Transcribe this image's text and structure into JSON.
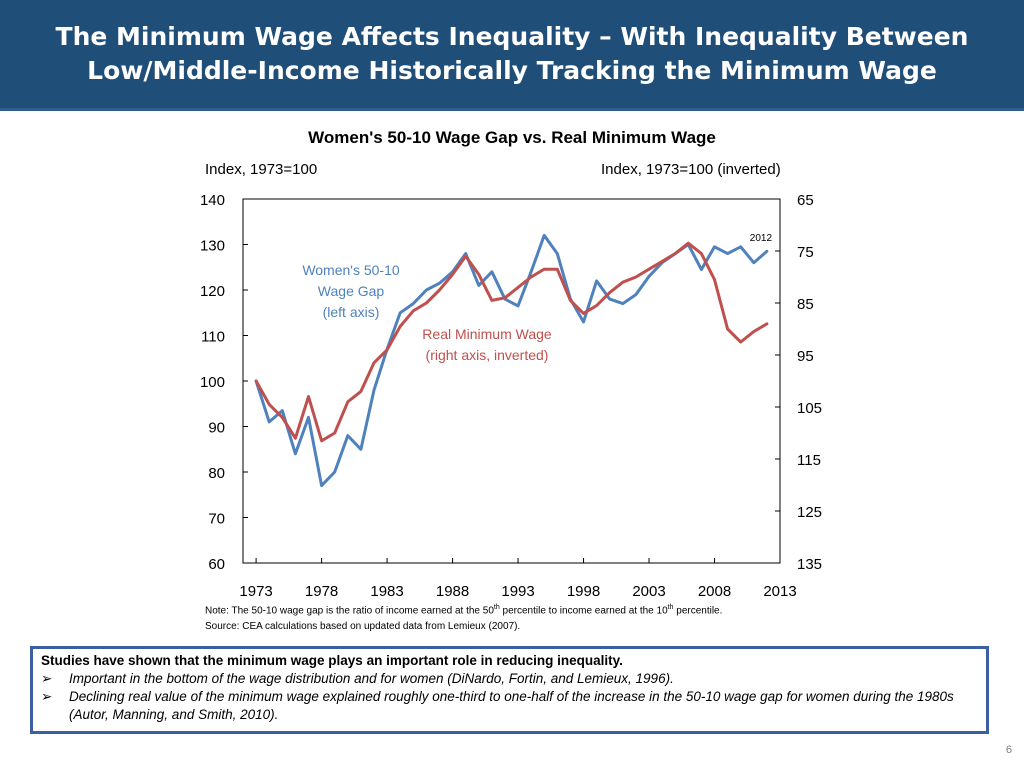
{
  "header": {
    "title_line1": "The Minimum Wage Affects Inequality – With Inequality Between",
    "title_line2": "Low/Middle-Income Historically Tracking the Minimum Wage"
  },
  "chart_data": {
    "type": "line",
    "title": "Women's 50-10 Wage Gap vs. Real Minimum Wage",
    "left_axis_unit": "Index, 1973=100",
    "right_axis_unit": "Index, 1973=100 (inverted)",
    "x_ticks": [
      "1973",
      "1978",
      "1983",
      "1988",
      "1993",
      "1998",
      "2003",
      "2008",
      "2013"
    ],
    "x_range": [
      1972,
      2013
    ],
    "left_ticks": [
      "140",
      "130",
      "120",
      "110",
      "100",
      "90",
      "80",
      "70",
      "60"
    ],
    "left_range": [
      60,
      140
    ],
    "right_ticks": [
      "65",
      "75",
      "85",
      "95",
      "105",
      "115",
      "125",
      "135"
    ],
    "right_range_inverted": [
      65,
      135
    ],
    "grid": false,
    "end_label": "2012",
    "series": [
      {
        "name": "Women's 50-10 Wage Gap (left axis)",
        "axis": "left",
        "color": "#4f81bd",
        "x": [
          1973,
          1974,
          1975,
          1976,
          1977,
          1978,
          1979,
          1980,
          1981,
          1982,
          1983,
          1984,
          1985,
          1986,
          1987,
          1988,
          1989,
          1990,
          1991,
          1992,
          1993,
          1994,
          1995,
          1996,
          1997,
          1998,
          1999,
          2000,
          2001,
          2002,
          2003,
          2004,
          2005,
          2006,
          2007,
          2008,
          2009,
          2010,
          2011,
          2012
        ],
        "values": [
          100,
          91,
          93.5,
          84,
          92,
          77,
          80,
          88,
          85,
          98,
          107,
          115,
          117,
          120,
          121.5,
          124,
          128,
          121,
          124,
          118,
          116.5,
          124,
          132,
          128,
          118,
          113,
          122,
          118,
          117,
          119,
          123,
          126,
          128,
          130,
          124.5,
          129.5,
          128,
          129.5,
          126,
          128.5
        ]
      },
      {
        "name": "Real Minimum Wage (right axis, inverted)",
        "axis": "right",
        "color": "#c0504d",
        "x": [
          1973,
          1974,
          1975,
          1976,
          1977,
          1978,
          1979,
          1980,
          1981,
          1982,
          1983,
          1984,
          1985,
          1986,
          1987,
          1988,
          1989,
          1990,
          1991,
          1992,
          1993,
          1994,
          1995,
          1996,
          1997,
          1998,
          1999,
          2000,
          2001,
          2002,
          2003,
          2004,
          2005,
          2006,
          2007,
          2008,
          2009,
          2010,
          2011,
          2012
        ],
        "values": [
          100,
          104.5,
          107,
          111,
          103,
          111.5,
          110,
          104,
          102,
          96.5,
          94,
          89.5,
          86.5,
          85,
          82.5,
          79.5,
          76,
          79.5,
          84.5,
          84,
          82,
          80,
          78.5,
          78.5,
          84.5,
          87,
          85.5,
          83,
          81,
          80,
          78.5,
          77,
          75.5,
          73.5,
          75.5,
          80.5,
          90,
          92.5,
          90.5,
          89
        ]
      }
    ],
    "annotations": {
      "blue_label": [
        "Women's 50-10",
        "Wage Gap",
        "(left axis)"
      ],
      "red_label": [
        "Real Minimum Wage",
        "(right axis, inverted)"
      ]
    }
  },
  "notes": {
    "note_a": "Note: The 50-10 wage gap is the ratio of income earned at the 50",
    "note_sup1": "th",
    "note_b": " percentile to income earned at the 10",
    "note_sup2": "th",
    "note_c": " percentile.",
    "source": "Source: CEA calculations based on updated data from Lemieux (2007)."
  },
  "callout": {
    "heading": "Studies have shown that the minimum wage plays an important role in reducing inequality.",
    "bullet_marker": "➢",
    "bullets": [
      "Important in the bottom of the wage distribution and for women (DiNardo, Fortin, and Lemieux, 1996).",
      "Declining real value of the minimum wage explained roughly one-third to one-half of the increase in the 50-10 wage gap for women during the 1980s (Autor, Manning, and Smith, 2010)."
    ]
  },
  "page_number": "6"
}
